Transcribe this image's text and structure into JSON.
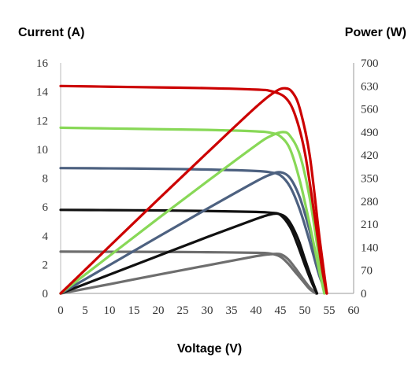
{
  "chart_data": {
    "type": "line",
    "xlabel": "Voltage (V)",
    "ylabel_left": "Current (A)",
    "ylabel_right": "Power (W)",
    "xlim": [
      0,
      60
    ],
    "ylim_left": [
      0,
      16
    ],
    "ylim_right": [
      0,
      700
    ],
    "x_ticks": [
      0,
      5,
      10,
      15,
      20,
      25,
      30,
      35,
      40,
      45,
      50,
      55,
      60
    ],
    "y_left_ticks": [
      0,
      2,
      4,
      6,
      8,
      10,
      12,
      14,
      16
    ],
    "y_right_ticks": [
      0,
      70,
      140,
      210,
      280,
      350,
      420,
      490,
      560,
      630,
      700
    ],
    "grid": false,
    "series": [
      {
        "color": "#cc0000",
        "current": {
          "x": [
            0,
            10,
            20,
            30,
            40,
            43,
            46,
            48,
            50,
            52,
            53.5,
            54.5
          ],
          "y": [
            14.4,
            14.35,
            14.3,
            14.25,
            14.15,
            14.05,
            13.6,
            12.4,
            9.8,
            5.4,
            1.8,
            0
          ]
        },
        "power": {
          "x": [
            0,
            10,
            20,
            30,
            40,
            44,
            46,
            47.5,
            49,
            51,
            53,
            54.5
          ],
          "y": [
            0,
            143,
            286,
            427,
            566,
            613,
            623,
            610,
            560,
            420,
            170,
            0
          ]
        }
      },
      {
        "color": "#88d857",
        "current": {
          "x": [
            0,
            10,
            20,
            30,
            40,
            43,
            45,
            47,
            49,
            51,
            53,
            54
          ],
          "y": [
            11.5,
            11.45,
            11.4,
            11.35,
            11.25,
            11.15,
            10.9,
            10.0,
            7.8,
            4.8,
            1.5,
            0
          ]
        },
        "power": {
          "x": [
            0,
            10,
            20,
            30,
            40,
            43,
            45.5,
            47,
            49,
            51,
            53,
            54
          ],
          "y": [
            0,
            114,
            228,
            340,
            450,
            478,
            490,
            478,
            420,
            290,
            100,
            0
          ]
        }
      },
      {
        "color": "#4d6180",
        "current": {
          "x": [
            0,
            10,
            20,
            30,
            40,
            43,
            45,
            47,
            49,
            51,
            53,
            54.5
          ],
          "y": [
            8.7,
            8.68,
            8.65,
            8.6,
            8.5,
            8.4,
            8.2,
            7.4,
            5.8,
            3.6,
            1.2,
            0
          ]
        },
        "power": {
          "x": [
            0,
            10,
            20,
            30,
            40,
            43,
            45,
            47,
            49,
            51,
            53,
            54.5
          ],
          "y": [
            0,
            86,
            172,
            257,
            340,
            361,
            368,
            350,
            290,
            190,
            70,
            0
          ]
        }
      },
      {
        "color": "#111111",
        "current": {
          "x": [
            0,
            10,
            20,
            30,
            40,
            43,
            45,
            47,
            48.5,
            50,
            51.5,
            52.5
          ],
          "y": [
            5.8,
            5.78,
            5.76,
            5.72,
            5.66,
            5.6,
            5.45,
            4.6,
            3.4,
            2.0,
            0.7,
            0
          ]
        },
        "power": {
          "x": [
            0,
            10,
            20,
            30,
            40,
            42.5,
            44.5,
            46.5,
            48.5,
            50,
            51.5,
            52.5
          ],
          "y": [
            0,
            57,
            114,
            171,
            226,
            238,
            242,
            225,
            170,
            105,
            40,
            0
          ]
        }
      },
      {
        "color": "#6e6e6e",
        "current": {
          "x": [
            0,
            10,
            20,
            30,
            40,
            43,
            45,
            46.5,
            48,
            49.5,
            51,
            52.3
          ],
          "y": [
            2.9,
            2.89,
            2.88,
            2.86,
            2.82,
            2.76,
            2.55,
            2.1,
            1.5,
            0.9,
            0.3,
            0
          ]
        },
        "power": {
          "x": [
            0,
            10,
            20,
            30,
            40,
            43,
            45,
            46.5,
            48,
            49.5,
            51,
            52.3
          ],
          "y": [
            0,
            28,
            57,
            85,
            113,
            119,
            119,
            105,
            78,
            47,
            18,
            0
          ]
        }
      }
    ]
  }
}
